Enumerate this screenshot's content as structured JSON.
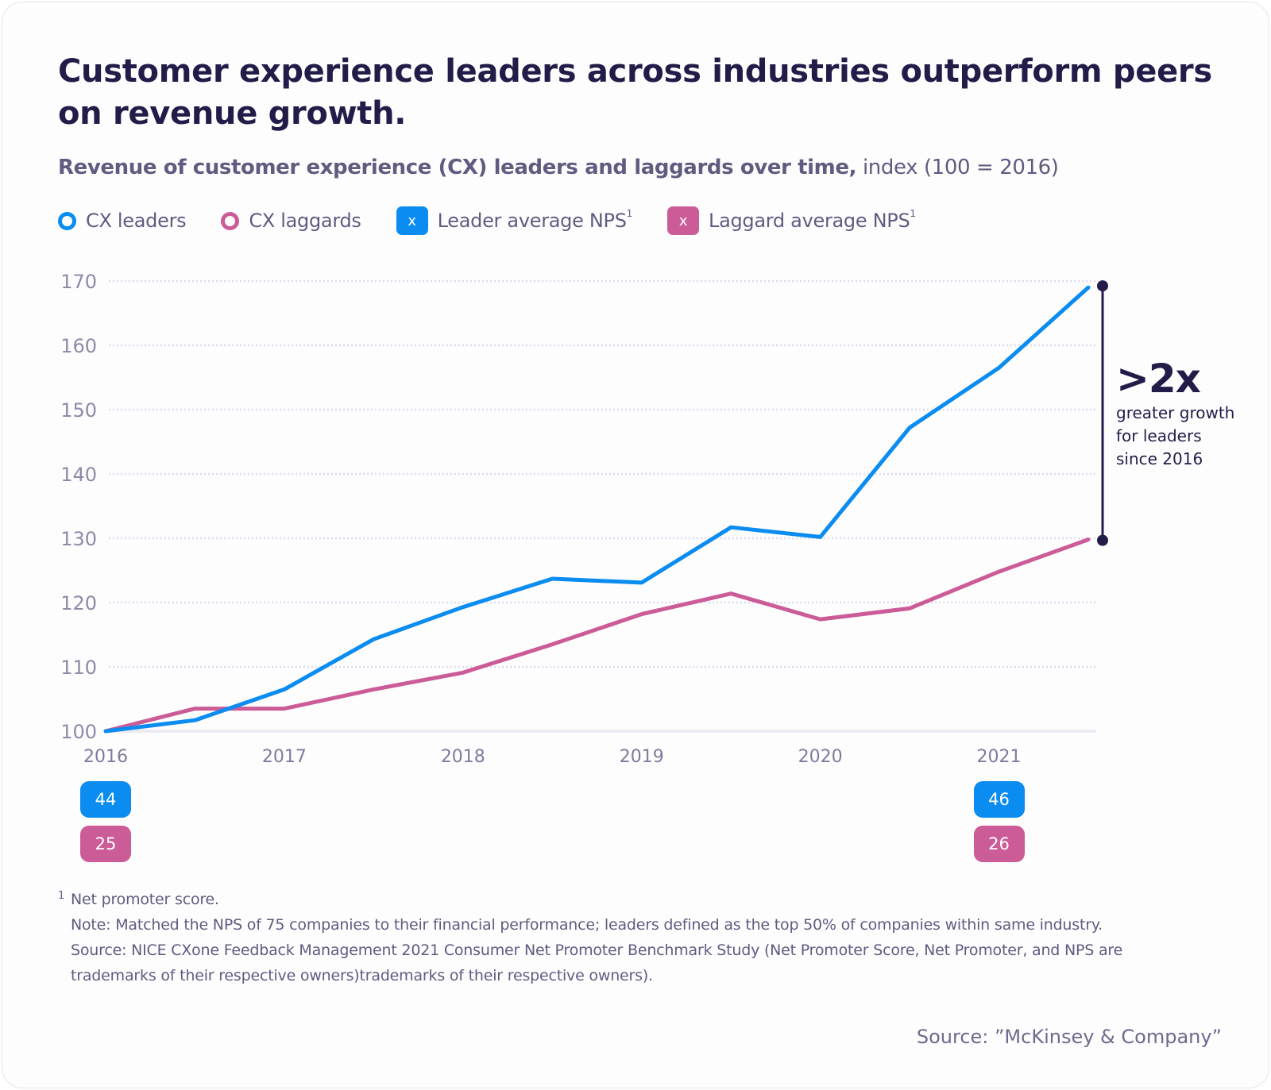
{
  "title": "Customer experience leaders across industries outperform peers on revenue growth.",
  "subtitle": {
    "bold": "Revenue of customer experience (CX) leaders and laggards over time,",
    "normal": " index (100 = 2016)"
  },
  "legend": [
    {
      "label": "CX leaders",
      "marker": "ring-icon",
      "color": "#0a8cf0"
    },
    {
      "label": "CX laggards",
      "marker": "ring-icon",
      "color": "#cc5c97"
    },
    {
      "label": "Leader average NPS",
      "sup": "1",
      "marker": "x-box-icon",
      "marker_text": "x",
      "color": "#0a8cf0"
    },
    {
      "label": "Laggard average NPS",
      "sup": "1",
      "marker": "x-box-icon",
      "marker_text": "x",
      "color": "#cc5c97"
    }
  ],
  "chart_data": {
    "type": "line",
    "title": "Revenue of customer experience (CX) leaders and laggards over time, index (100 = 2016)",
    "xlabel": "",
    "ylabel": "",
    "x": [
      2016,
      2016.5,
      2017,
      2017.5,
      2018,
      2018.5,
      2019,
      2019.5,
      2020,
      2020.5,
      2021,
      2021.5
    ],
    "x_tick_labels": [
      "2016",
      "2017",
      "2018",
      "2019",
      "2020",
      "2021"
    ],
    "x_ticks": [
      2016,
      2017,
      2018,
      2019,
      2020,
      2021
    ],
    "xlim": [
      2016,
      2021.5
    ],
    "ylim": [
      100,
      170
    ],
    "y_ticks": [
      100,
      110,
      120,
      130,
      140,
      150,
      160,
      170
    ],
    "grid": true,
    "legend_position": "top-left",
    "series": [
      {
        "name": "CX leaders",
        "color": "#0a8cf0",
        "values": [
          100,
          101.7,
          106.5,
          114.3,
          119.3,
          123.7,
          123.1,
          131.7,
          130.2,
          147.2,
          156.5,
          169
        ]
      },
      {
        "name": "CX laggards",
        "color": "#cc5c97",
        "values": [
          100,
          103.5,
          103.5,
          106.5,
          109.1,
          113.5,
          118.2,
          121.4,
          117.4,
          119.1,
          124.8,
          129.8
        ]
      }
    ],
    "nps": {
      "leader": [
        {
          "year": 2016,
          "value": "44"
        },
        {
          "year": 2021,
          "value": "46"
        }
      ],
      "laggard": [
        {
          "year": 2016,
          "value": "25"
        },
        {
          "year": 2021,
          "value": "26"
        }
      ]
    },
    "annotation": {
      "headline": ">2x",
      "text_lines": [
        "greater growth",
        "for leaders",
        "since 2016"
      ],
      "from_value": 169,
      "to_value": 129.8,
      "color": "#221d48"
    }
  },
  "footnotes": [
    {
      "num": "1",
      "text": "Net promoter score."
    },
    {
      "text": "Note: Matched the NPS of 75 companies to their financial performance; leaders defined as the top 50% of companies within same industry."
    },
    {
      "text": "Source: NICE CXone Feedback Management 2021 Consumer Net Promoter Benchmark Study (Net Promoter Score, Net Promoter, and NPS are"
    },
    {
      "text": "trademarks of their respective owners)trademarks of their respective owners)."
    }
  ],
  "source": "Source: ”McKinsey & Company”",
  "colors": {
    "leader": "#0a8cf0",
    "laggard": "#cc5c97",
    "text_dark": "#221d48",
    "text_muted": "#5f5c80",
    "grid": "#dcdcf0"
  }
}
